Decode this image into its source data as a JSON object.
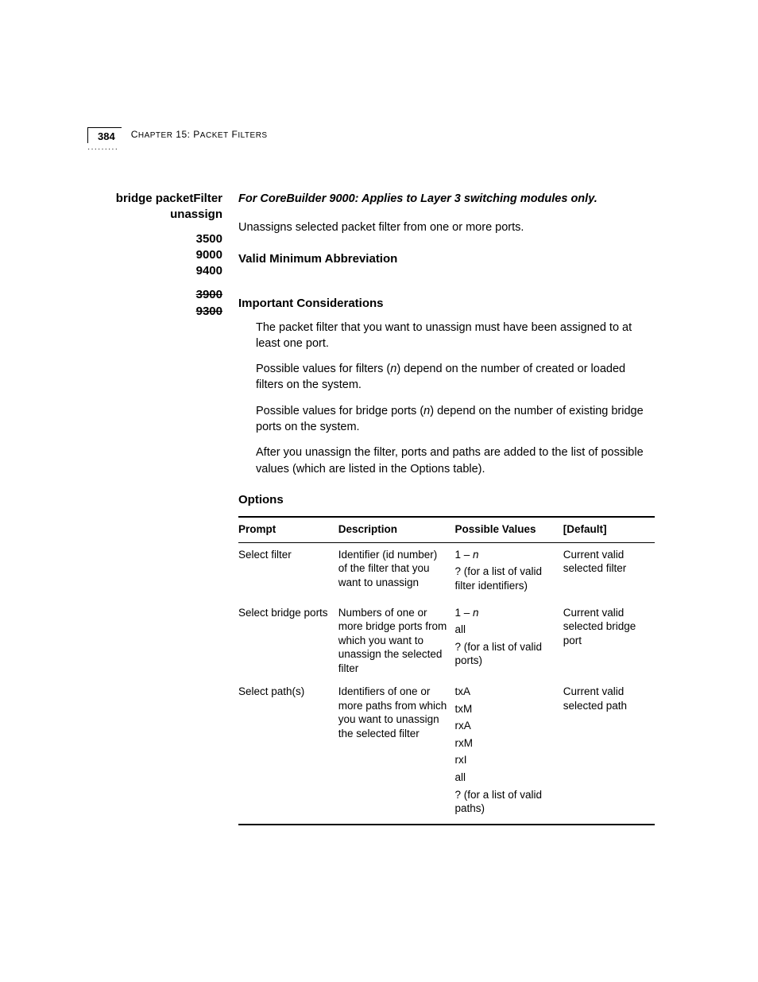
{
  "header": {
    "page_number": "384",
    "chapter_label": "Chapter 15: Packet Filters"
  },
  "left": {
    "command_line1": "bridge packetFilter",
    "command_line2": "unassign",
    "group1_a": "3500",
    "group1_b": "9000",
    "group1_c": "9400",
    "group2_a": "3900",
    "group2_b": "9300"
  },
  "body": {
    "applies_note": "For CoreBuilder 9000: Applies to Layer 3 switching modules only.",
    "intro": "Unassigns selected packet filter from one or more ports.",
    "abbrev_heading": "Valid Minimum Abbreviation",
    "considerations_heading": "Important Considerations",
    "cons1": "The packet filter that you want to unassign must have been assigned to at least one port.",
    "cons2_a": "Possible values for filters (",
    "cons2_n": "n",
    "cons2_b": ") depend on the number of created or loaded filters on the system.",
    "cons3_a": "Possible values for bridge ports (",
    "cons3_n": "n",
    "cons3_b": ") depend on the number of existing bridge ports on the system.",
    "cons4": "After you unassign the filter, ports and paths are added to the list of possible values (which are listed in the Options table).",
    "options_heading": "Options"
  },
  "table": {
    "headers": {
      "prompt": "Prompt",
      "description": "Description",
      "possible_values": "Possible Values",
      "default": "[Default]"
    },
    "rows": [
      {
        "prompt": "Select filter",
        "description": "Identifier (id number) of the filter that you want to unassign",
        "pv": [
          "1 – n",
          "? (for a list of valid filter identifiers)"
        ],
        "default": "Current valid selected filter"
      },
      {
        "prompt": "Select bridge ports",
        "description": "Numbers of one or more bridge ports from which you want to unassign the selected filter",
        "pv": [
          "1 – n",
          "all",
          "? (for a list of valid ports)"
        ],
        "default": "Current valid selected bridge port"
      },
      {
        "prompt": "Select path(s)",
        "description": "Identifiers of one or more paths from which you want to unassign the selected filter",
        "pv": [
          "txA",
          "txM",
          "rxA",
          "rxM",
          "rxI",
          "all",
          "? (for a list of valid paths)"
        ],
        "default": "Current valid selected path"
      }
    ]
  }
}
